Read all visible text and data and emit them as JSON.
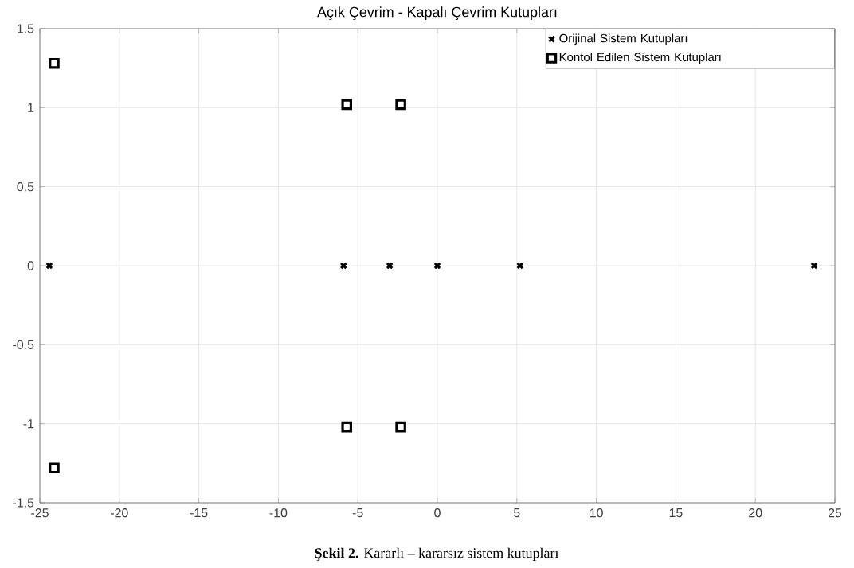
{
  "chart_data": {
    "type": "scatter",
    "title": "Açık Çevrim - Kapalı Çevrim Kutupları",
    "annotations": [
      "**Şekil 2.** Kararlı – kararsız sistem kutupları"
    ],
    "series": [
      {
        "name": "Orijinal Sistem Kutupları",
        "color": "#000000",
        "marker": "cross",
        "x": [
          -24.4,
          -5.9,
          -3.0,
          0.0,
          5.2,
          23.7
        ],
        "values": [
          0,
          0,
          0,
          0,
          0,
          0
        ]
      },
      {
        "name": "Kontol Edilen Sistem Kutupları",
        "color": "#000000",
        "marker": "square",
        "x": [
          -24.1,
          -24.1,
          -5.7,
          -5.7,
          -2.3,
          -2.3
        ],
        "values": [
          1.28,
          -1.28,
          1.02,
          -1.02,
          1.02,
          -1.02
        ]
      }
    ],
    "xlim": [
      -25,
      25
    ],
    "ylim": [
      -1.5,
      1.5
    ],
    "xticks": [
      -25,
      -20,
      -15,
      -10,
      -5,
      0,
      5,
      10,
      15,
      20,
      25
    ],
    "yticks": [
      -1.5,
      -1,
      -0.5,
      0,
      0.5,
      1,
      1.5
    ],
    "grid": true,
    "legend": "top right"
  }
}
